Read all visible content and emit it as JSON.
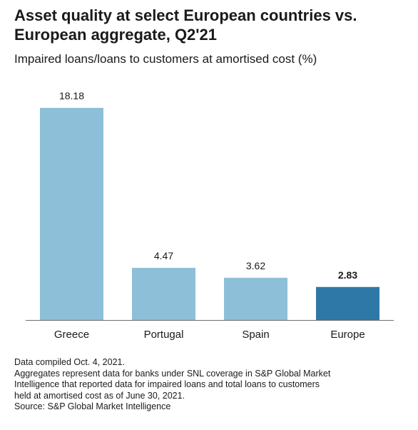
{
  "title_lines": [
    "Asset quality at select European countries vs.",
    "European aggregate, Q2'21"
  ],
  "subtitle": "Impaired loans/loans to customers at amortised cost (%)",
  "chart_data": {
    "type": "bar",
    "title": "Asset quality at select European countries vs. European aggregate, Q2'21",
    "subtitle": "Impaired loans/loans to customers at amortised cost (%)",
    "categories": [
      "Greece",
      "Portugal",
      "Spain",
      "Europe"
    ],
    "values": [
      18.18,
      4.47,
      3.62,
      2.83
    ],
    "value_labels": [
      "18.18",
      "4.47",
      "3.62",
      "2.83"
    ],
    "highlight_category": "Europe",
    "xlabel": "",
    "ylabel": "",
    "ylim": [
      0,
      18.18
    ],
    "grid": false,
    "legend": "none",
    "colors": {
      "bar": "#8dbfd8",
      "highlight": "#2e78a7",
      "axis": "#6e6e6e",
      "text": "#1a1a1a"
    }
  },
  "footer": {
    "compiled": "Data compiled Oct. 4, 2021.",
    "note_lines": [
      "Aggregates represent data for banks under SNL coverage in S&P Global Market",
      "Intelligence that reported data for impaired loans and total loans to customers",
      "held at amortised cost as of June 30, 2021."
    ],
    "source": "Source: S&P Global Market Intelligence"
  }
}
